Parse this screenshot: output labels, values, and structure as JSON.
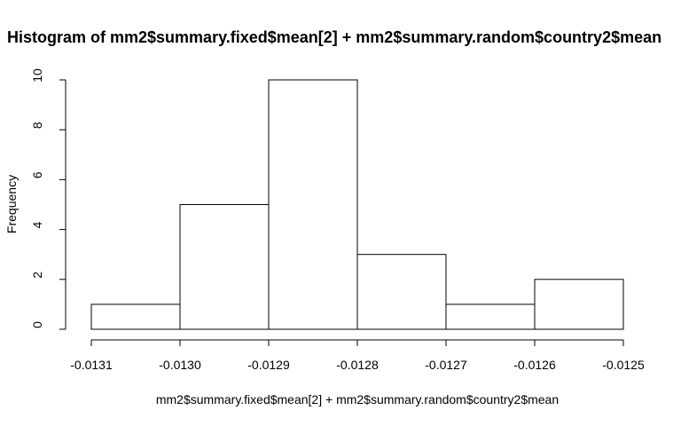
{
  "chart_data": {
    "type": "bar",
    "title": "Histogram of mm2$summary.fixed$mean[2] + mm2$summary.random$country2$mean",
    "xlabel": "mm2$summary.fixed$mean[2] + mm2$summary.random$country2$mean",
    "ylabel": "Frequency",
    "bins": [
      {
        "start": -0.0131,
        "end": -0.013,
        "value": 1
      },
      {
        "start": -0.013,
        "end": -0.0129,
        "value": 5
      },
      {
        "start": -0.0129,
        "end": -0.0128,
        "value": 10
      },
      {
        "start": -0.0128,
        "end": -0.0127,
        "value": 3
      },
      {
        "start": -0.0127,
        "end": -0.0126,
        "value": 1
      },
      {
        "start": -0.0126,
        "end": -0.0125,
        "value": 2
      }
    ],
    "xlim": [
      -0.0131,
      -0.0125
    ],
    "ylim": [
      0,
      10
    ],
    "x_ticks": [
      -0.0131,
      -0.013,
      -0.0129,
      -0.0128,
      -0.0127,
      -0.0126,
      -0.0125
    ],
    "x_tick_labels": [
      "-0.0131",
      "-0.0130",
      "-0.0129",
      "-0.0128",
      "-0.0127",
      "-0.0126",
      "-0.0125"
    ],
    "y_ticks": [
      0,
      2,
      4,
      6,
      8,
      10
    ],
    "y_tick_labels": [
      "0",
      "2",
      "4",
      "6",
      "8",
      "10"
    ],
    "grid": false,
    "colors": {
      "bar_fill": "#ffffff",
      "bar_stroke": "#000000"
    }
  }
}
